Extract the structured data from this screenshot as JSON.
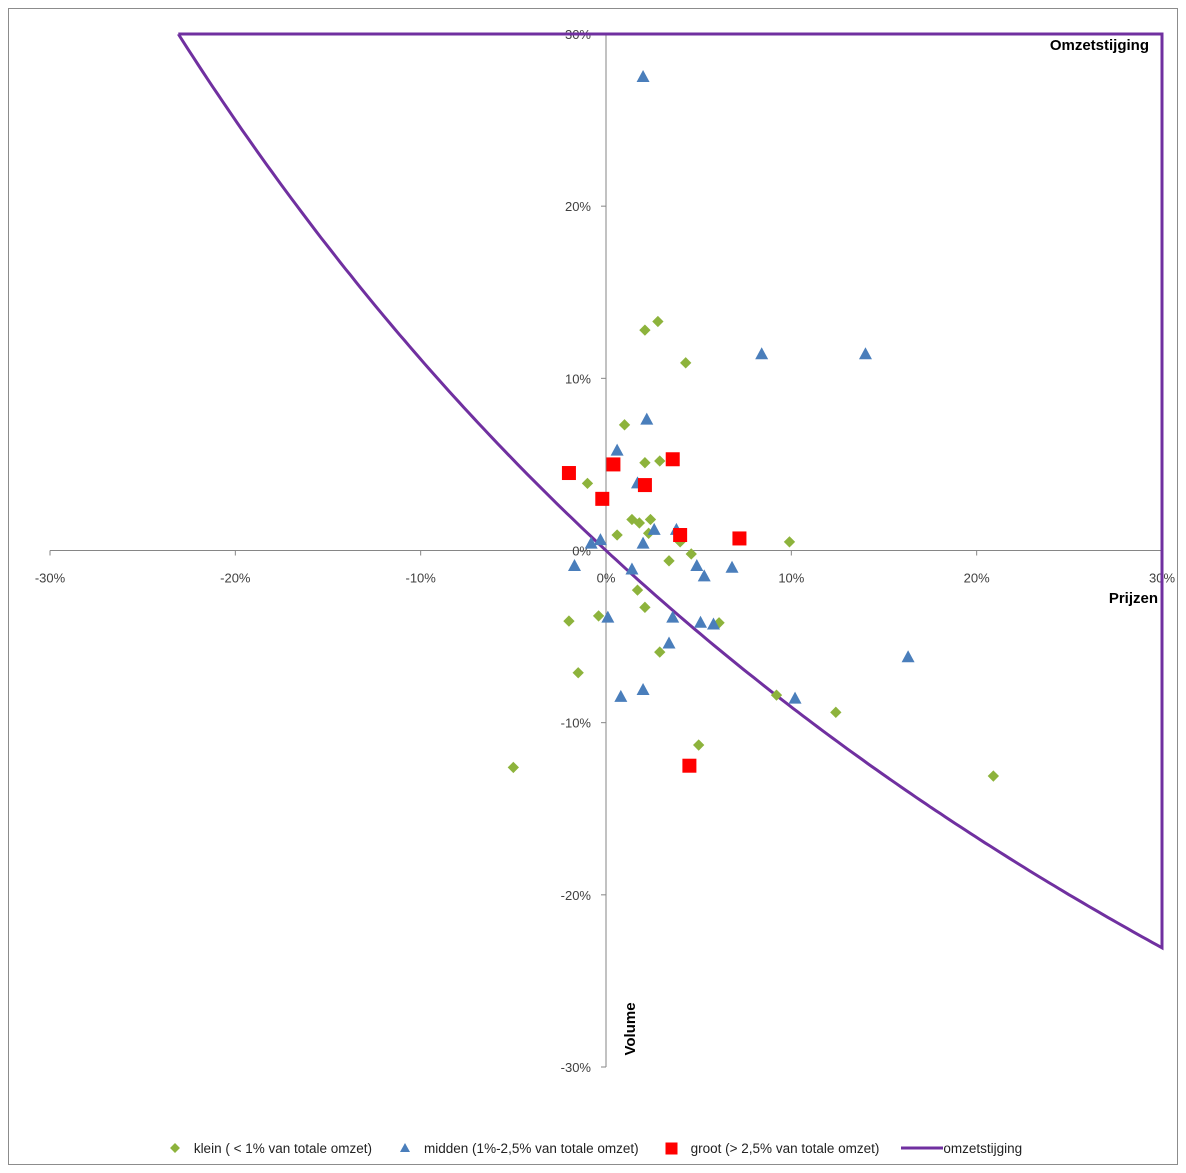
{
  "chart_data": {
    "type": "scatter",
    "title": "",
    "xlabel": "Prijzen",
    "ylabel": "Volume",
    "region_label": "Omzetstijging",
    "xlim": [
      -0.3,
      0.3
    ],
    "ylim": [
      -0.3,
      0.3
    ],
    "x_ticks": [
      -0.3,
      -0.2,
      -0.1,
      0,
      0.1,
      0.2,
      0.3
    ],
    "x_tick_labels": [
      "-30%",
      "-20%",
      "-10%",
      "0%",
      "10%",
      "20%",
      "30%"
    ],
    "y_ticks": [
      0.3,
      0.2,
      0.1,
      0,
      -0.1,
      -0.2,
      -0.3
    ],
    "y_tick_labels": [
      "30%",
      "20%",
      "10%",
      "0%",
      "-10%",
      "-20%",
      "-30%"
    ],
    "grid": false,
    "legend_position": "bottom",
    "colors": {
      "klein": "#8db33c",
      "midden": "#4a7ebb",
      "groot": "#ff0000",
      "omzet": "#7030a0"
    },
    "series": [
      {
        "name": "klein ( < 1% van totale omzet)",
        "marker": "diamond",
        "points": [
          [
            0.028,
            0.133
          ],
          [
            0.021,
            0.128
          ],
          [
            0.043,
            0.109
          ],
          [
            0.01,
            0.073
          ],
          [
            0.021,
            0.051
          ],
          [
            0.029,
            0.052
          ],
          [
            -0.01,
            0.039
          ],
          [
            0.014,
            0.018
          ],
          [
            0.018,
            0.016
          ],
          [
            0.024,
            0.018
          ],
          [
            0.023,
            0.01
          ],
          [
            0.006,
            0.009
          ],
          [
            0.04,
            0.005
          ],
          [
            0.099,
            0.005
          ],
          [
            0.046,
            -0.002
          ],
          [
            0.034,
            -0.006
          ],
          [
            0.017,
            -0.023
          ],
          [
            0.021,
            -0.033
          ],
          [
            -0.004,
            -0.038
          ],
          [
            -0.02,
            -0.041
          ],
          [
            0.061,
            -0.042
          ],
          [
            0.029,
            -0.059
          ],
          [
            -0.015,
            -0.071
          ],
          [
            0.092,
            -0.084
          ],
          [
            0.124,
            -0.094
          ],
          [
            0.05,
            -0.113
          ],
          [
            -0.05,
            -0.126
          ],
          [
            0.209,
            -0.131
          ]
        ]
      },
      {
        "name": "midden (1%-2,5% van totale omzet)",
        "marker": "triangle",
        "points": [
          [
            0.02,
            0.275
          ],
          [
            0.084,
            0.114
          ],
          [
            0.14,
            0.114
          ],
          [
            0.022,
            0.076
          ],
          [
            0.006,
            0.058
          ],
          [
            0.017,
            0.039
          ],
          [
            0.026,
            0.012
          ],
          [
            0.038,
            0.012
          ],
          [
            -0.003,
            0.006
          ],
          [
            -0.008,
            0.004
          ],
          [
            0.02,
            0.004
          ],
          [
            -0.017,
            -0.009
          ],
          [
            0.014,
            -0.011
          ],
          [
            0.049,
            -0.009
          ],
          [
            0.068,
            -0.01
          ],
          [
            0.053,
            -0.015
          ],
          [
            0.001,
            -0.039
          ],
          [
            0.036,
            -0.039
          ],
          [
            0.051,
            -0.042
          ],
          [
            0.058,
            -0.043
          ],
          [
            0.034,
            -0.054
          ],
          [
            0.163,
            -0.062
          ],
          [
            0.02,
            -0.081
          ],
          [
            0.008,
            -0.085
          ],
          [
            0.102,
            -0.086
          ]
        ]
      },
      {
        "name": "groot (> 2,5% van totale omzet)",
        "marker": "square",
        "points": [
          [
            0.036,
            0.053
          ],
          [
            0.004,
            0.05
          ],
          [
            -0.02,
            0.045
          ],
          [
            0.021,
            0.038
          ],
          [
            -0.002,
            0.03
          ],
          [
            0.04,
            0.009
          ],
          [
            0.072,
            0.007
          ],
          [
            0.045,
            -0.125
          ]
        ]
      },
      {
        "name": "omzetstijging",
        "marker": "line"
      }
    ]
  }
}
